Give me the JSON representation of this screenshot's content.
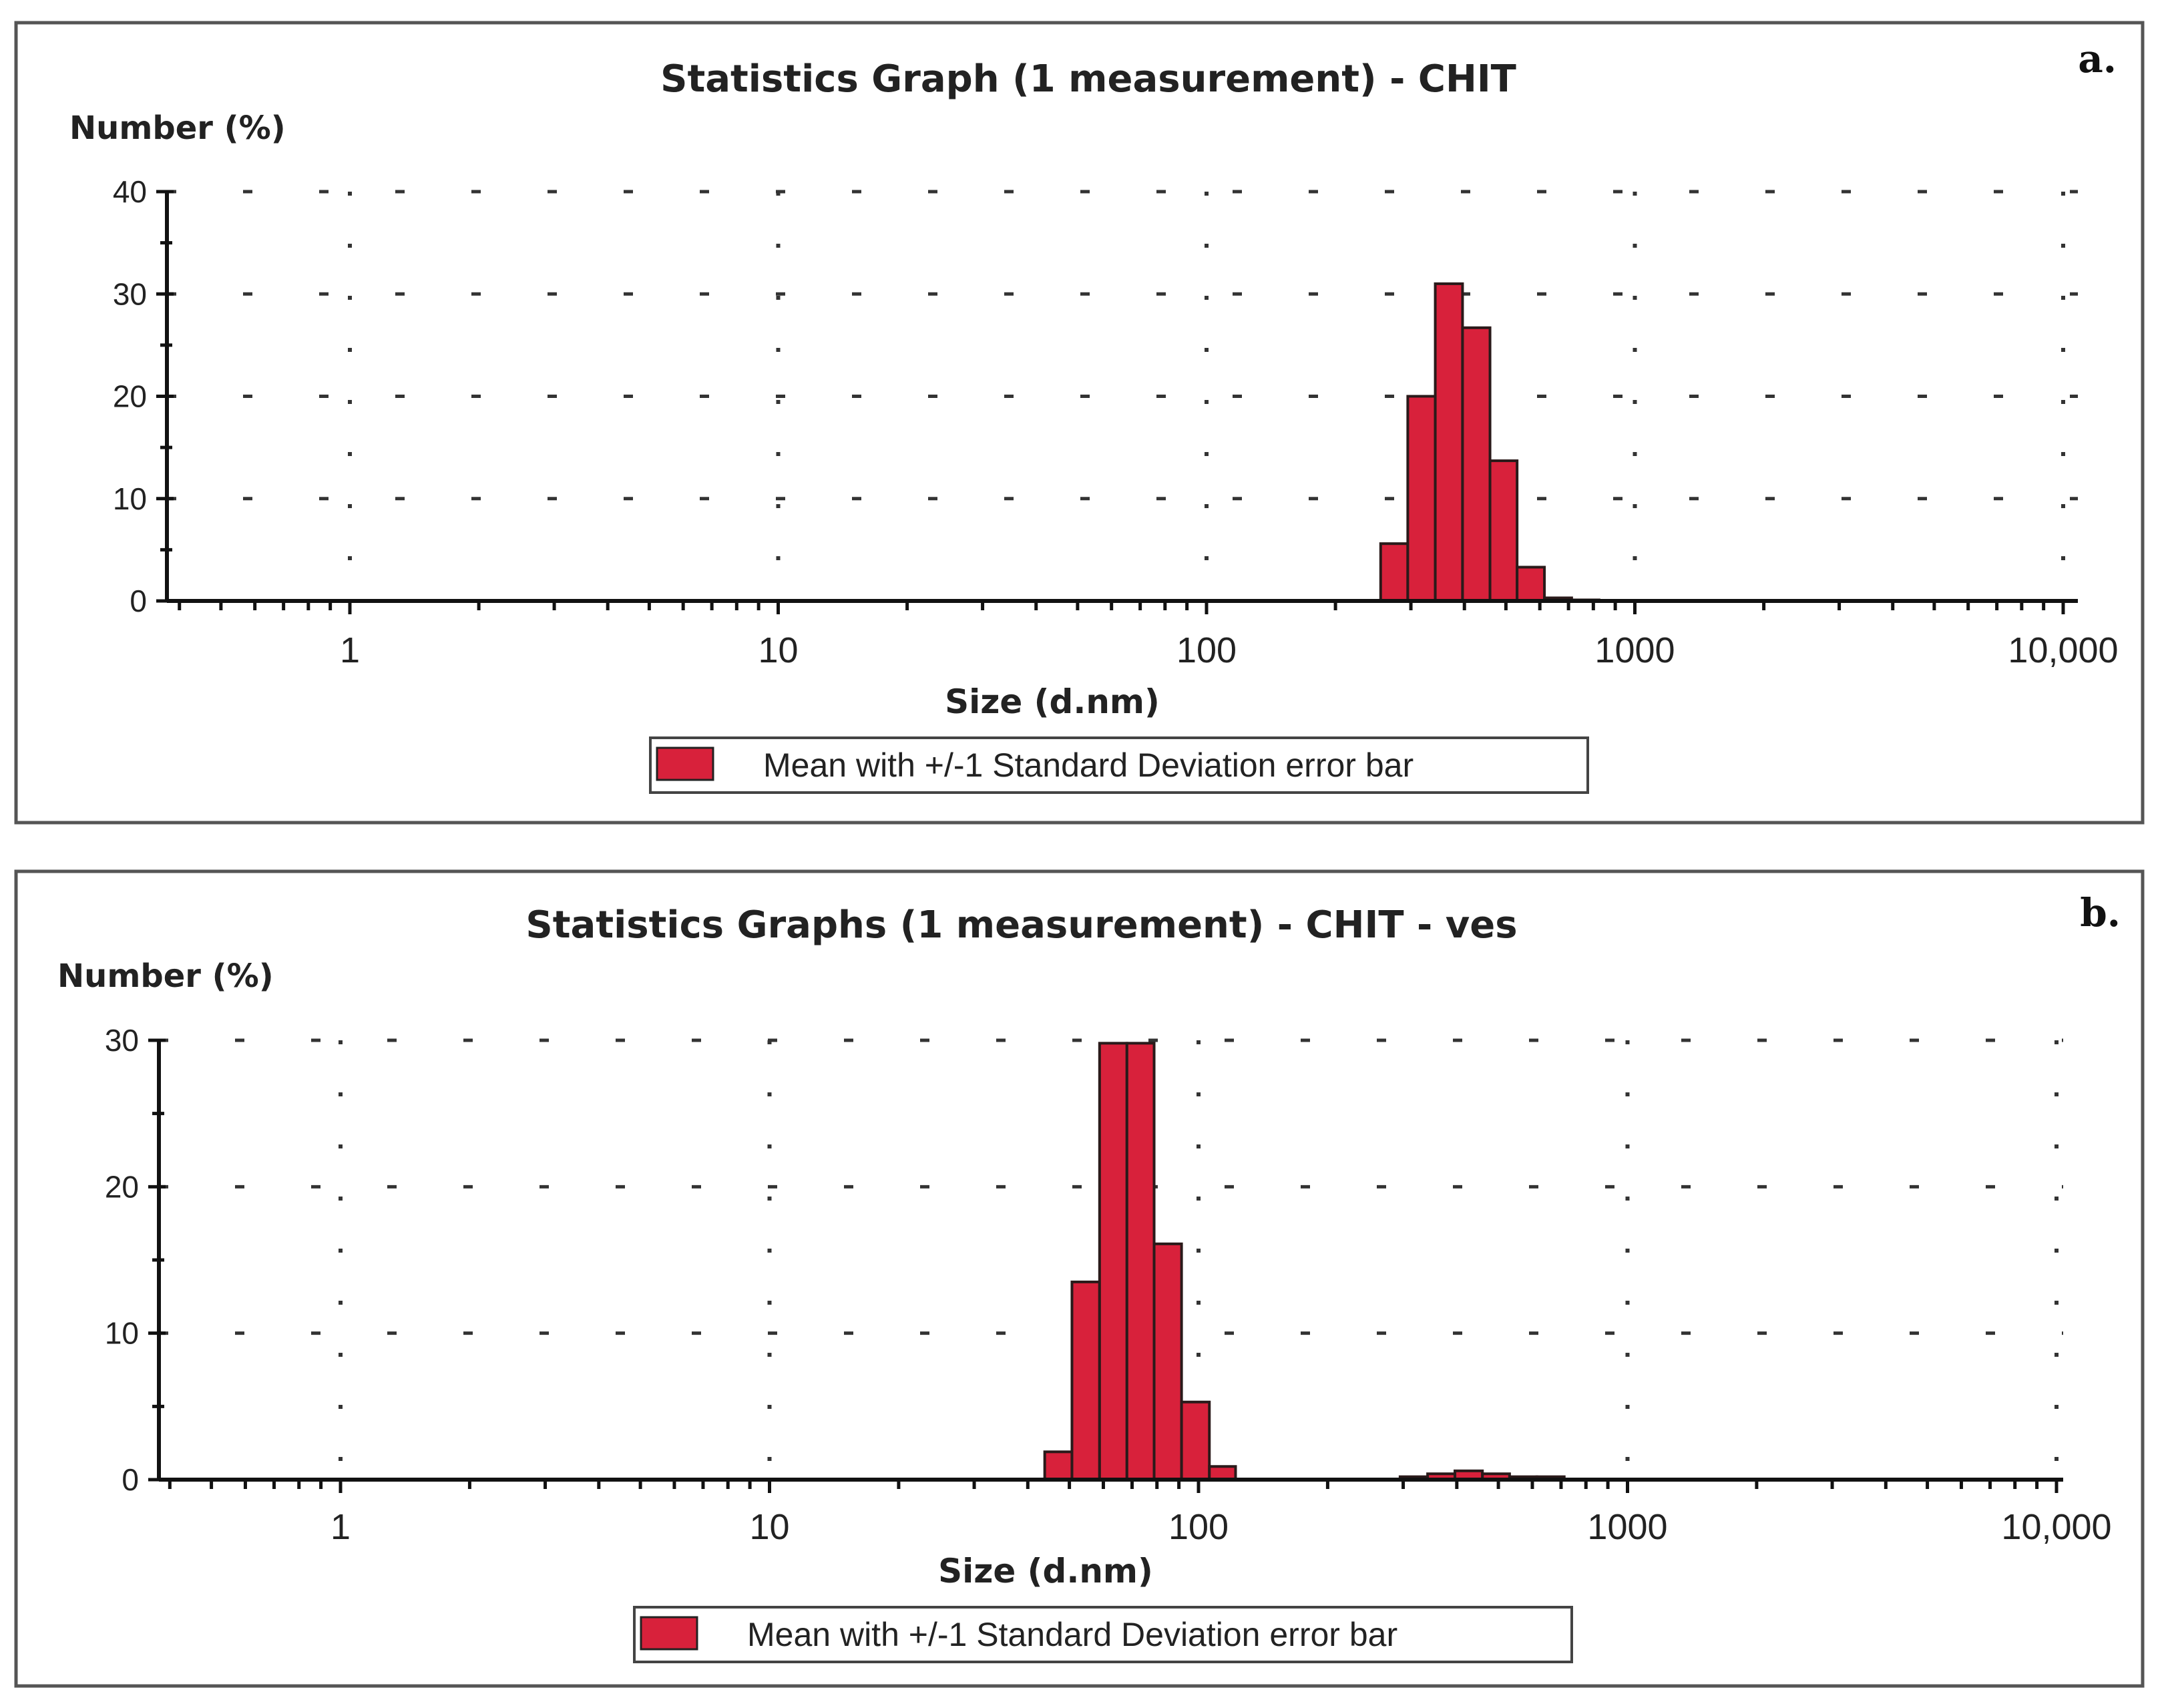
{
  "chart_data": [
    {
      "type": "bar",
      "panel_label": "a.",
      "title": "Statistics Graph (1 measurement) - CHIT",
      "ylabel": "Number (%)",
      "xlabel": "Size (d.nm)",
      "x_scale": "log",
      "xlim": [
        0.4,
        12000
      ],
      "ylim": [
        0,
        40
      ],
      "y_ticks": [
        0,
        10,
        20,
        30,
        40
      ],
      "x_ticks": [
        {
          "value": 1,
          "label": "1"
        },
        {
          "value": 10,
          "label": "10"
        },
        {
          "value": 100,
          "label": "100"
        },
        {
          "value": 1000,
          "label": "1000"
        },
        {
          "value": 10000,
          "label": "10,000"
        }
      ],
      "grid": true,
      "legend": "Mean with +/-1 Standard Deviation error bar",
      "bar_color": "#d8213b",
      "bins": [
        {
          "x0": 255,
          "x1": 295,
          "value": 5.6
        },
        {
          "x0": 295,
          "x1": 342,
          "value": 20
        },
        {
          "x0": 342,
          "x1": 396,
          "value": 31
        },
        {
          "x0": 396,
          "x1": 459,
          "value": 26.7
        },
        {
          "x0": 459,
          "x1": 531,
          "value": 13.7
        },
        {
          "x0": 531,
          "x1": 615,
          "value": 3.3
        },
        {
          "x0": 615,
          "x1": 712,
          "value": 0.3
        },
        {
          "x0": 712,
          "x1": 825,
          "value": 0.1
        }
      ]
    },
    {
      "type": "bar",
      "panel_label": "b.",
      "title": "Statistics Graphs (1 measurement) - CHIT - ves",
      "ylabel": "Number (%)",
      "xlabel": "Size (d.nm)",
      "x_scale": "log",
      "xlim": [
        0.4,
        12000
      ],
      "ylim": [
        0,
        30
      ],
      "y_ticks": [
        0,
        10,
        20,
        30
      ],
      "x_ticks": [
        {
          "value": 1,
          "label": "1"
        },
        {
          "value": 10,
          "label": "10"
        },
        {
          "value": 100,
          "label": "100"
        },
        {
          "value": 1000,
          "label": "1000"
        },
        {
          "value": 10000,
          "label": "10,000"
        }
      ],
      "grid": true,
      "legend": "Mean with +/-1 Standard Deviation error bar",
      "bar_color": "#d8213b",
      "bins": [
        {
          "x0": 43.8,
          "x1": 50.7,
          "value": 1.9
        },
        {
          "x0": 50.7,
          "x1": 58.8,
          "value": 13.5
        },
        {
          "x0": 58.8,
          "x1": 68.1,
          "value": 29.8
        },
        {
          "x0": 68.1,
          "x1": 78.8,
          "value": 29.8
        },
        {
          "x0": 78.8,
          "x1": 91.3,
          "value": 16.1
        },
        {
          "x0": 91.3,
          "x1": 106,
          "value": 5.3
        },
        {
          "x0": 106,
          "x1": 122,
          "value": 0.9
        },
        {
          "x0": 295,
          "x1": 342,
          "value": 0.2
        },
        {
          "x0": 342,
          "x1": 396,
          "value": 0.4
        },
        {
          "x0": 396,
          "x1": 459,
          "value": 0.6
        },
        {
          "x0": 459,
          "x1": 531,
          "value": 0.4
        },
        {
          "x0": 531,
          "x1": 615,
          "value": 0.2
        },
        {
          "x0": 615,
          "x1": 712,
          "value": 0.2
        }
      ]
    }
  ]
}
